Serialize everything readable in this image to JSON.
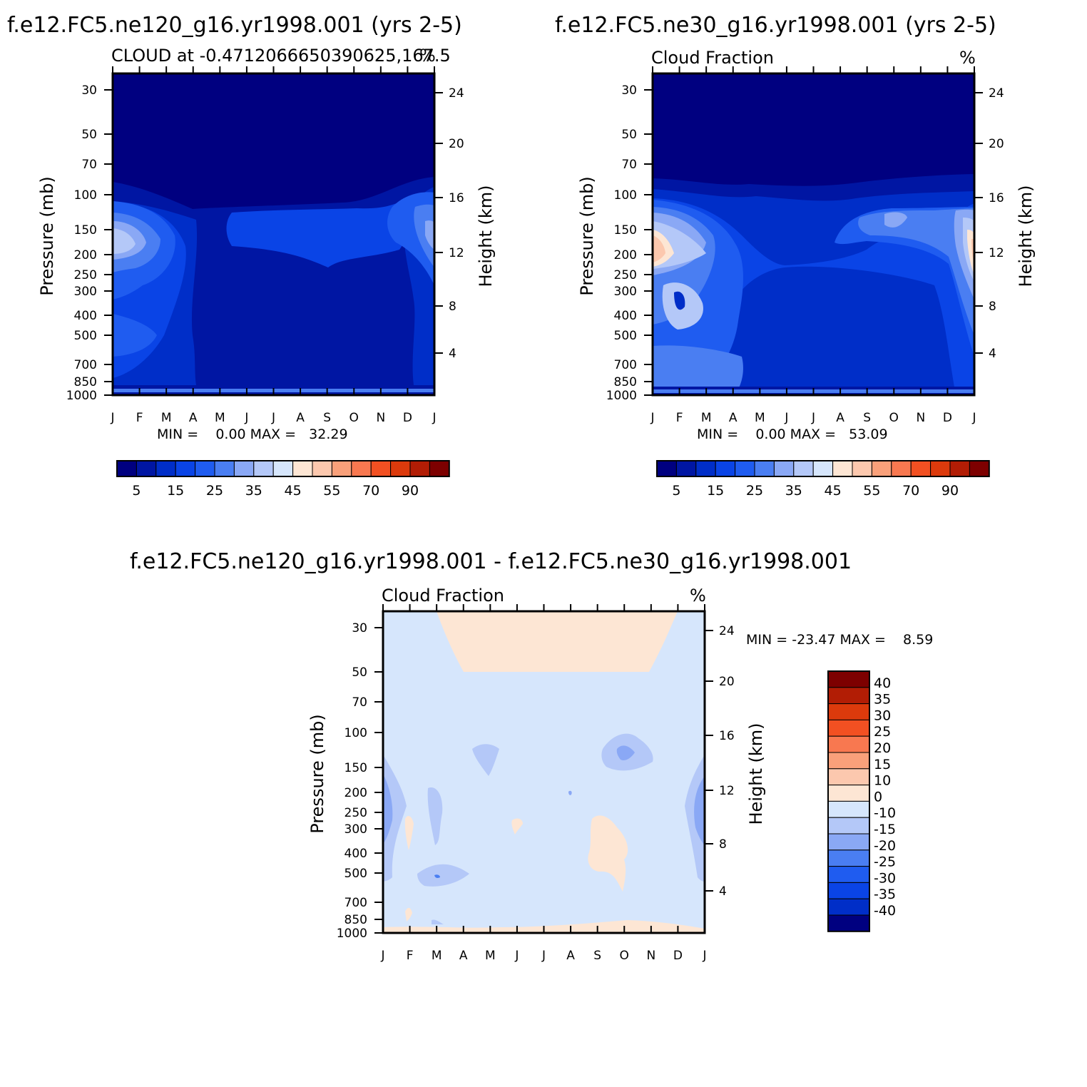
{
  "chart_data": [
    {
      "type": "heatmap",
      "title": "f.e12.FC5.ne120_g16.yr1998.001 (yrs 2-5)",
      "subtitle": "CLOUD at -0.4712066650390625,167.5",
      "units": "%",
      "ylabel": "Pressure (mb)",
      "ylabel_right": "Height (km)",
      "x_ticks": [
        "J",
        "F",
        "M",
        "A",
        "M",
        "J",
        "J",
        "A",
        "S",
        "O",
        "N",
        "D",
        "J"
      ],
      "y_ticks": [
        "30",
        "50",
        "70",
        "100",
        "150",
        "200",
        "250",
        "300",
        "400",
        "500",
        "700",
        "850",
        "1000"
      ],
      "y_ticks_right": [
        "24",
        "20",
        "16",
        "12",
        "8",
        "4"
      ],
      "stats": "MIN =    0.00 MAX =   32.29",
      "min": 0.0,
      "max": 32.29,
      "colorbar_labels": [
        "5",
        "15",
        "25",
        "35",
        "45",
        "55",
        "70",
        "90"
      ],
      "colors": [
        "#000080",
        "#0016a3",
        "#002ec8",
        "#0a44e6",
        "#1f5cf0",
        "#4a7ef2",
        "#8aa8f5",
        "#b4c8f8",
        "#d6e6fc",
        "#fde6d4",
        "#fcc8ae",
        "#f9a07a",
        "#f87850",
        "#f25022",
        "#dc3a0c",
        "#b21d05",
        "#7d0000"
      ],
      "fill_levels": [
        0,
        1,
        2,
        3,
        4,
        5,
        6
      ]
    },
    {
      "type": "heatmap",
      "title": "f.e12.FC5.ne30_g16.yr1998.001 (yrs 2-5)",
      "subtitle": "Cloud Fraction",
      "units": "%",
      "ylabel": "Pressure (mb)",
      "ylabel_right": "Height (km)",
      "x_ticks": [
        "J",
        "F",
        "M",
        "A",
        "M",
        "J",
        "J",
        "A",
        "S",
        "O",
        "N",
        "D",
        "J"
      ],
      "y_ticks": [
        "30",
        "50",
        "70",
        "100",
        "150",
        "200",
        "250",
        "300",
        "400",
        "500",
        "700",
        "850",
        "1000"
      ],
      "y_ticks_right": [
        "24",
        "20",
        "16",
        "12",
        "8",
        "4"
      ],
      "stats": "MIN =    0.00 MAX =   53.09",
      "min": 0.0,
      "max": 53.09,
      "colorbar_labels": [
        "5",
        "15",
        "25",
        "35",
        "45",
        "55",
        "70",
        "90"
      ]
    },
    {
      "type": "heatmap",
      "title": "f.e12.FC5.ne120_g16.yr1998.001 - f.e12.FC5.ne30_g16.yr1998.001",
      "subtitle": "Cloud Fraction",
      "units": "%",
      "ylabel": "Pressure (mb)",
      "ylabel_right": "Height (km)",
      "x_ticks": [
        "J",
        "F",
        "M",
        "A",
        "M",
        "J",
        "J",
        "A",
        "S",
        "O",
        "N",
        "D",
        "J"
      ],
      "y_ticks": [
        "30",
        "50",
        "70",
        "100",
        "150",
        "200",
        "250",
        "300",
        "400",
        "500",
        "700",
        "850",
        "1000"
      ],
      "y_ticks_right": [
        "24",
        "20",
        "16",
        "12",
        "8",
        "4"
      ],
      "stats": "MIN = -23.47 MAX =    8.59",
      "min": -23.47,
      "max": 8.59,
      "colorbar_labels": [
        "40",
        "35",
        "30",
        "25",
        "20",
        "15",
        "10",
        "0",
        "-10",
        "-15",
        "-20",
        "-25",
        "-30",
        "-35",
        "-40"
      ],
      "colors": [
        "#7d0000",
        "#b21d05",
        "#dc3a0c",
        "#f25022",
        "#f87850",
        "#f9a07a",
        "#fcc8ae",
        "#fde6d4",
        "#d6e6fc",
        "#b4c8f8",
        "#8aa8f5",
        "#4a7ef2",
        "#1f5cf0",
        "#0a44e6",
        "#002ec8",
        "#000080"
      ]
    }
  ]
}
